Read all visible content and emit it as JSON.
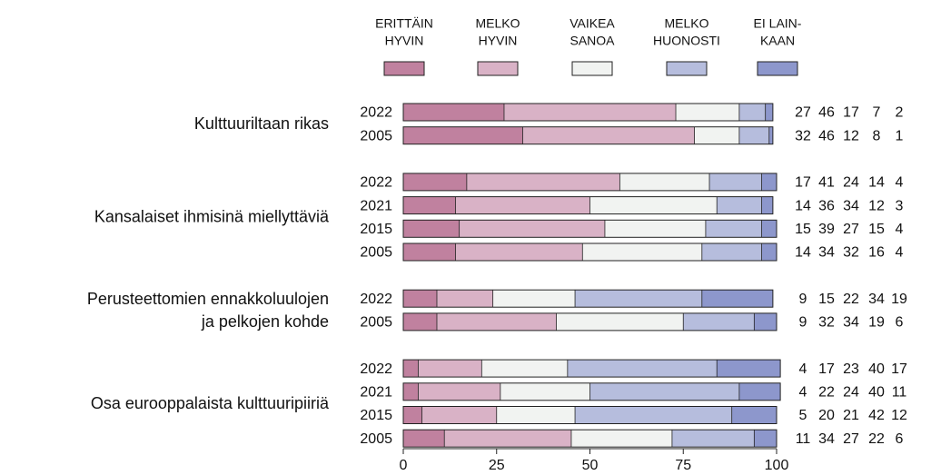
{
  "chart_data": {
    "type": "stacked_bar_h",
    "series": [
      {
        "name": [
          "ERITTÄIN",
          "HYVIN"
        ],
        "color": "#c0819f"
      },
      {
        "name": [
          "MELKO",
          "HYVIN"
        ],
        "color": "#d9b2c6"
      },
      {
        "name": [
          "VAIKEA",
          "SANOA"
        ],
        "color": "#f1f3f1"
      },
      {
        "name": [
          "MELKO",
          "HUONOSTI"
        ],
        "color": "#b6bddd"
      },
      {
        "name": [
          "EI LAIN-",
          "KAAN"
        ],
        "color": "#8d97cc"
      }
    ],
    "groups": [
      {
        "label": [
          "Kulttuuriltaan rikas"
        ],
        "rows": [
          {
            "year": "2022",
            "values": [
              27,
              46,
              17,
              7,
              2
            ]
          },
          {
            "year": "2005",
            "values": [
              32,
              46,
              12,
              8,
              1
            ]
          }
        ]
      },
      {
        "label": [
          "Kansalaiset ihmisinä miellyttäviä"
        ],
        "rows": [
          {
            "year": "2022",
            "values": [
              17,
              41,
              24,
              14,
              4
            ]
          },
          {
            "year": "2021",
            "values": [
              14,
              36,
              34,
              12,
              3
            ]
          },
          {
            "year": "2015",
            "values": [
              15,
              39,
              27,
              15,
              4
            ]
          },
          {
            "year": "2005",
            "values": [
              14,
              34,
              32,
              16,
              4
            ]
          }
        ]
      },
      {
        "label": [
          "Perusteettomien ennakkoluulojen",
          "ja pelkojen kohde"
        ],
        "rows": [
          {
            "year": "2022",
            "values": [
              9,
              15,
              22,
              34,
              19
            ]
          },
          {
            "year": "2005",
            "values": [
              9,
              32,
              34,
              19,
              6
            ]
          }
        ]
      },
      {
        "label": [
          "Osa eurooppalaista kulttuuripiiriä"
        ],
        "rows": [
          {
            "year": "2022",
            "values": [
              4,
              17,
              23,
              40,
              17
            ]
          },
          {
            "year": "2021",
            "values": [
              4,
              22,
              24,
              40,
              11
            ]
          },
          {
            "year": "2015",
            "values": [
              5,
              20,
              21,
              42,
              12
            ]
          },
          {
            "year": "2005",
            "values": [
              11,
              34,
              27,
              22,
              6
            ]
          }
        ]
      }
    ],
    "xlim": [
      0,
      100
    ],
    "xticks": [
      0,
      25,
      50,
      75,
      100
    ]
  }
}
